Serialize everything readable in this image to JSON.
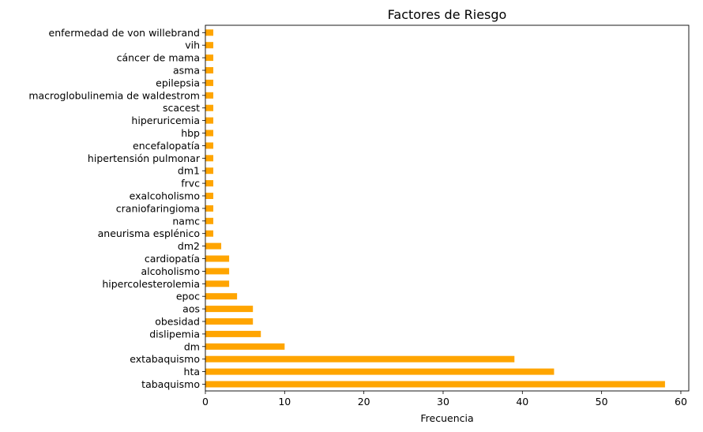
{
  "chart_data": {
    "type": "bar",
    "orientation": "horizontal",
    "title": "Factores de Riesgo",
    "xlabel": "Frecuencia",
    "ylabel": "",
    "xlim": [
      0,
      61
    ],
    "xticks": [
      0,
      10,
      20,
      30,
      40,
      50,
      60
    ],
    "grid": false,
    "legend": "none",
    "bar_color": "#ffa500",
    "categories": [
      "tabaquismo",
      "hta",
      "extabaquismo",
      "dm",
      "dislipemia",
      "obesidad",
      "aos",
      "epoc",
      "hipercolesterolemia",
      "alcoholismo",
      "cardiopatía",
      "dm2",
      "aneurisma esplénico",
      "namc",
      "craniofaringioma",
      "exalcoholismo",
      "frvc",
      "dm1",
      "hipertensión pulmonar",
      "encefalopatía",
      "hbp",
      "hiperuricemia",
      "scacest",
      "macroglobulinemia de waldestrom",
      "epilepsia",
      "asma",
      "cáncer de mama",
      "vih",
      "enfermedad de von willebrand"
    ],
    "values": [
      58,
      44,
      39,
      10,
      7,
      6,
      6,
      4,
      3,
      3,
      3,
      2,
      1,
      1,
      1,
      1,
      1,
      1,
      1,
      1,
      1,
      1,
      1,
      1,
      1,
      1,
      1,
      1,
      1
    ]
  }
}
